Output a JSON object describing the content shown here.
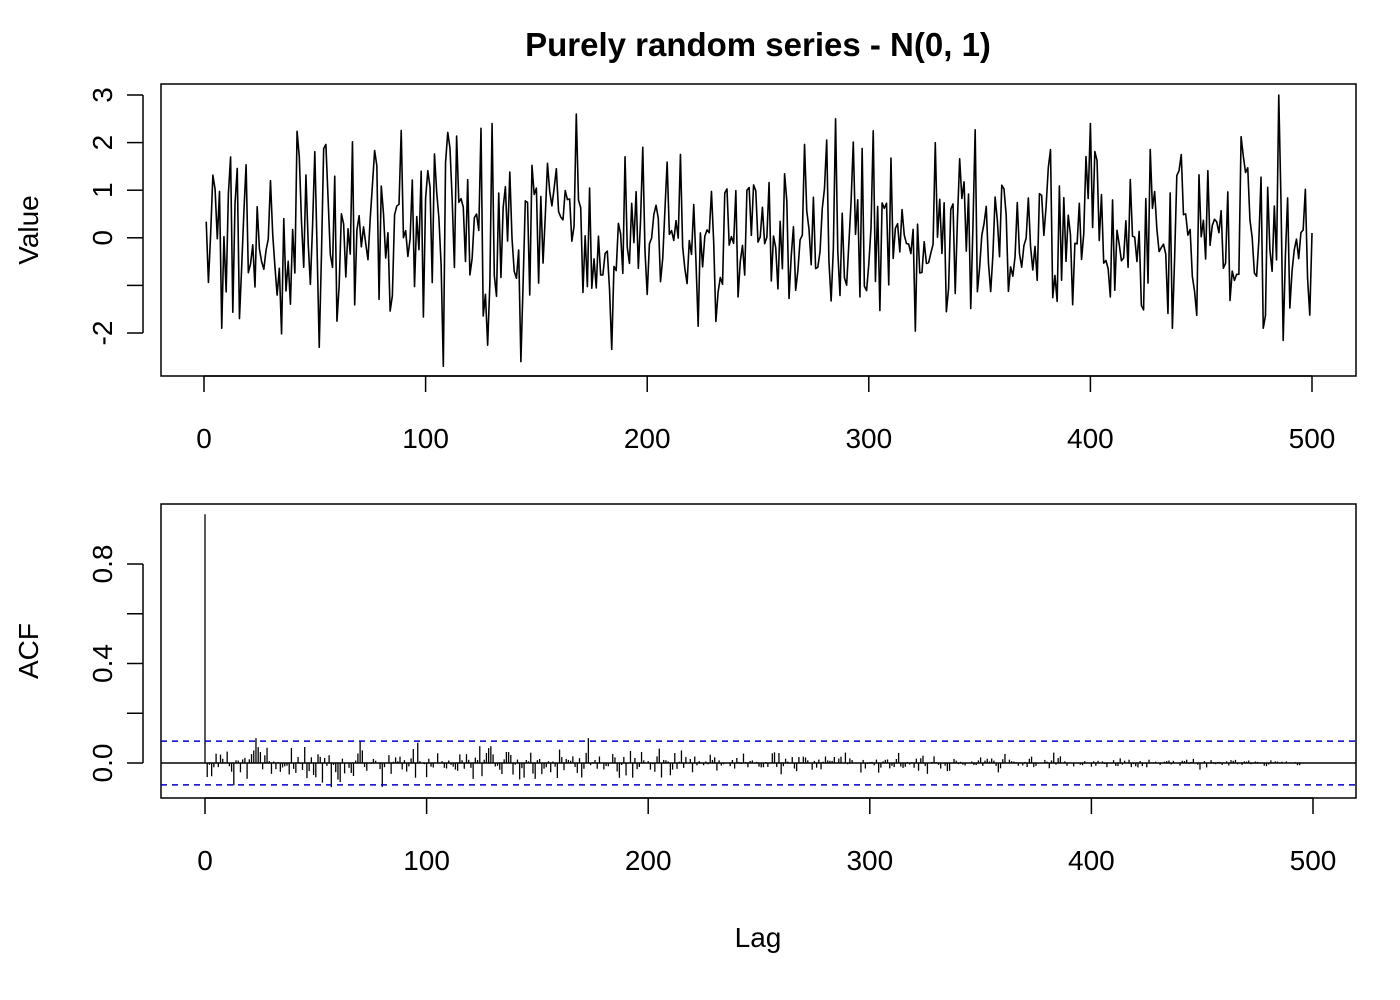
{
  "chart_data": [
    {
      "type": "line",
      "title": "Purely random series - N(0, 1)",
      "xlabel": "",
      "ylabel": "Value",
      "xlim": [
        0,
        500
      ],
      "ylim": [
        -2.75,
        3.1
      ],
      "x_ticks": [
        0,
        100,
        200,
        300,
        400,
        500
      ],
      "y_ticks": [
        -2,
        -1,
        0,
        1,
        2,
        3
      ],
      "y_tick_labels": [
        "-2",
        "",
        "0",
        "1",
        "2",
        "3"
      ],
      "series_n": 500,
      "series_seed": 20240512,
      "line_color": "#000000",
      "approx_shape": "white noise fluctuating around 0 with min about -2.7 near x=108 and max about 3.0 near x=485",
      "landmarks": [
        {
          "x": 8,
          "y": -1.9
        },
        {
          "x": 12,
          "y": 1.7
        },
        {
          "x": 43,
          "y": 1.7
        },
        {
          "x": 52,
          "y": -2.3
        },
        {
          "x": 108,
          "y": -2.7
        },
        {
          "x": 125,
          "y": 2.3
        },
        {
          "x": 130,
          "y": 2.4
        },
        {
          "x": 143,
          "y": -2.6
        },
        {
          "x": 168,
          "y": 2.6
        },
        {
          "x": 198,
          "y": 1.9
        },
        {
          "x": 285,
          "y": 2.5
        },
        {
          "x": 400,
          "y": 2.4
        },
        {
          "x": 478,
          "y": -1.9
        },
        {
          "x": 485,
          "y": 3.0
        },
        {
          "x": 500,
          "y": 0.1
        }
      ]
    },
    {
      "type": "bar",
      "title": "",
      "xlabel": "Lag",
      "ylabel": "ACF",
      "xlim": [
        0,
        500
      ],
      "ylim": [
        -0.14,
        1.0
      ],
      "x_ticks": [
        0,
        100,
        200,
        300,
        400,
        500
      ],
      "y_ticks": [
        0.0,
        0.2,
        0.4,
        0.6,
        0.8
      ],
      "y_tick_labels": [
        "0.0",
        "",
        "0.4",
        "",
        "0.8"
      ],
      "max_lag": 495,
      "lag0_value": 1.0,
      "confidence_bound": 0.0877,
      "confidence_line_color": "#0000cc",
      "bar_color": "#000000",
      "acf_seed": 98765,
      "approx_shape": "spike of 1.0 at lag 0, remaining small autocorrelations mostly within about -0.1 to 0.1 shrinking toward zero at high lags"
    }
  ]
}
